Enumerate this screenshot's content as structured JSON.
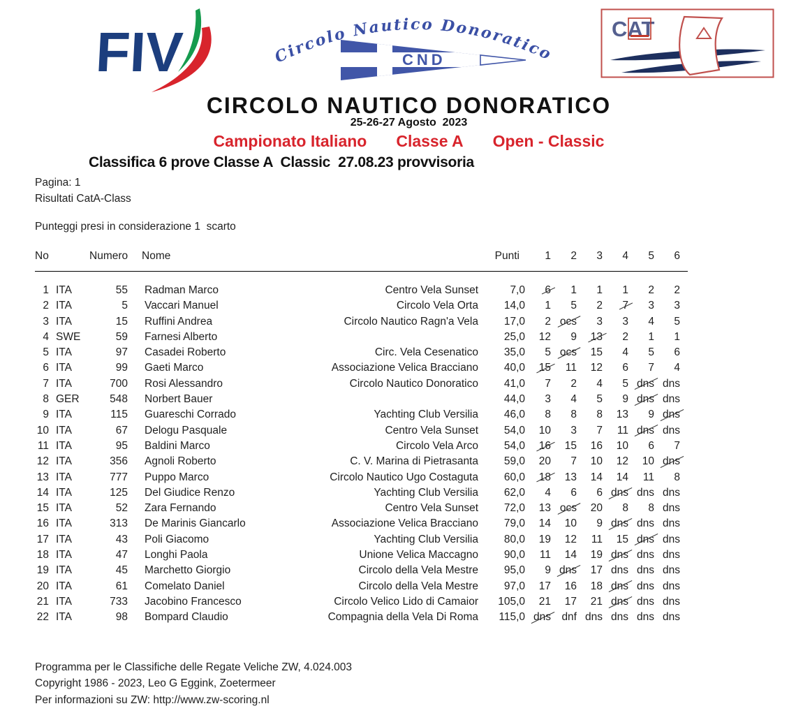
{
  "logos": {
    "fiv_text": "FIV",
    "club_arc_text": "Circolo Nautico Donoratico",
    "pennant_label": "CND",
    "cat_label": "CAT"
  },
  "header": {
    "title": "CIRCOLO NAUTICO DONORATICO",
    "dates": "25-26-27 Agosto  2023",
    "championship_parts": [
      "Campionato Italiano",
      "Classe A",
      "Open - Classic"
    ],
    "subtitle": "Classifica 6 prove Classe A  Classic  27.08.23 provvisoria"
  },
  "meta": {
    "page": "Pagina: 1",
    "results": "Risultati CatA-Class",
    "discard_note": "Punteggi presi in considerazione 1  scarto"
  },
  "table": {
    "headers": {
      "no": "No",
      "numero": "Numero",
      "nome": "Nome",
      "punti": "Punti",
      "races": [
        "1",
        "2",
        "3",
        "4",
        "5",
        "6"
      ]
    },
    "rows": [
      {
        "no": "1",
        "nat": "ITA",
        "sail": "55",
        "name": "Radman Marco",
        "club": "Centro Vela Sunset",
        "points": "7,0",
        "races": [
          {
            "v": "6",
            "struck": true
          },
          {
            "v": "1"
          },
          {
            "v": "1"
          },
          {
            "v": "1"
          },
          {
            "v": "2"
          },
          {
            "v": "2"
          }
        ]
      },
      {
        "no": "2",
        "nat": "ITA",
        "sail": "5",
        "name": "Vaccari Manuel",
        "club": "Circolo Vela Orta",
        "points": "14,0",
        "races": [
          {
            "v": "1"
          },
          {
            "v": "5"
          },
          {
            "v": "2"
          },
          {
            "v": "7",
            "struck": true
          },
          {
            "v": "3"
          },
          {
            "v": "3"
          }
        ]
      },
      {
        "no": "3",
        "nat": "ITA",
        "sail": "15",
        "name": "Ruffini Andrea",
        "club": "Circolo Nautico Ragn'a Vela",
        "points": "17,0",
        "races": [
          {
            "v": "2"
          },
          {
            "v": "ocs",
            "struck": true
          },
          {
            "v": "3"
          },
          {
            "v": "3"
          },
          {
            "v": "4"
          },
          {
            "v": "5"
          }
        ]
      },
      {
        "no": "4",
        "nat": "SWE",
        "sail": "59",
        "name": "Farnesi Alberto",
        "club": "",
        "points": "25,0",
        "races": [
          {
            "v": "12"
          },
          {
            "v": "9"
          },
          {
            "v": "13",
            "struck": true
          },
          {
            "v": "2"
          },
          {
            "v": "1"
          },
          {
            "v": "1"
          }
        ]
      },
      {
        "no": "5",
        "nat": "ITA",
        "sail": "97",
        "name": "Casadei Roberto",
        "club": "Circ. Vela Cesenatico",
        "points": "35,0",
        "races": [
          {
            "v": "5"
          },
          {
            "v": "ocs",
            "struck": true
          },
          {
            "v": "15"
          },
          {
            "v": "4"
          },
          {
            "v": "5"
          },
          {
            "v": "6"
          }
        ]
      },
      {
        "no": "6",
        "nat": "ITA",
        "sail": "99",
        "name": "Gaeti Marco",
        "club": "Associazione Velica Bracciano",
        "points": "40,0",
        "races": [
          {
            "v": "15",
            "struck": true
          },
          {
            "v": "11"
          },
          {
            "v": "12"
          },
          {
            "v": "6"
          },
          {
            "v": "7"
          },
          {
            "v": "4"
          }
        ]
      },
      {
        "no": "7",
        "nat": "ITA",
        "sail": "700",
        "name": "Rosi Alessandro",
        "club": "Circolo Nautico Donoratico",
        "points": "41,0",
        "races": [
          {
            "v": "7"
          },
          {
            "v": "2"
          },
          {
            "v": "4"
          },
          {
            "v": "5"
          },
          {
            "v": "dns",
            "struck": true
          },
          {
            "v": "dns"
          }
        ]
      },
      {
        "no": "8",
        "nat": "GER",
        "sail": "548",
        "name": "Norbert Bauer",
        "club": "",
        "points": "44,0",
        "races": [
          {
            "v": "3"
          },
          {
            "v": "4"
          },
          {
            "v": "5"
          },
          {
            "v": "9"
          },
          {
            "v": "dns",
            "struck": true
          },
          {
            "v": "dns"
          }
        ]
      },
      {
        "no": "9",
        "nat": "ITA",
        "sail": "115",
        "name": "Guareschi Corrado",
        "club": "Yachting Club Versilia",
        "points": "46,0",
        "races": [
          {
            "v": "8"
          },
          {
            "v": "8"
          },
          {
            "v": "8"
          },
          {
            "v": "13"
          },
          {
            "v": "9"
          },
          {
            "v": "dns",
            "struck": true
          }
        ]
      },
      {
        "no": "10",
        "nat": "ITA",
        "sail": "67",
        "name": "Delogu Pasquale",
        "club": "Centro Vela Sunset",
        "points": "54,0",
        "races": [
          {
            "v": "10"
          },
          {
            "v": "3"
          },
          {
            "v": "7"
          },
          {
            "v": "11"
          },
          {
            "v": "dns",
            "struck": true
          },
          {
            "v": "dns"
          }
        ]
      },
      {
        "no": "11",
        "nat": "ITA",
        "sail": "95",
        "name": "Baldini Marco",
        "club": "Circolo Vela Arco",
        "points": "54,0",
        "races": [
          {
            "v": "16",
            "struck": true
          },
          {
            "v": "15"
          },
          {
            "v": "16"
          },
          {
            "v": "10"
          },
          {
            "v": "6"
          },
          {
            "v": "7"
          }
        ]
      },
      {
        "no": "12",
        "nat": "ITA",
        "sail": "356",
        "name": "Agnoli Roberto",
        "club": "C. V. Marina di Pietrasanta",
        "points": "59,0",
        "races": [
          {
            "v": "20"
          },
          {
            "v": "7"
          },
          {
            "v": "10"
          },
          {
            "v": "12"
          },
          {
            "v": "10"
          },
          {
            "v": "dns",
            "struck": true
          }
        ]
      },
      {
        "no": "13",
        "nat": "ITA",
        "sail": "777",
        "name": "Puppo Marco",
        "club": "Circolo Nautico Ugo Costaguta",
        "points": "60,0",
        "races": [
          {
            "v": "18",
            "struck": true
          },
          {
            "v": "13"
          },
          {
            "v": "14"
          },
          {
            "v": "14"
          },
          {
            "v": "11"
          },
          {
            "v": "8"
          }
        ]
      },
      {
        "no": "14",
        "nat": "ITA",
        "sail": "125",
        "name": "Del Giudice Renzo",
        "club": "Yachting Club Versilia",
        "points": "62,0",
        "races": [
          {
            "v": "4"
          },
          {
            "v": "6"
          },
          {
            "v": "6"
          },
          {
            "v": "dns",
            "struck": true
          },
          {
            "v": "dns"
          },
          {
            "v": "dns"
          }
        ]
      },
      {
        "no": "15",
        "nat": "ITA",
        "sail": "52",
        "name": "Zara Fernando",
        "club": "Centro Vela Sunset",
        "points": "72,0",
        "races": [
          {
            "v": "13"
          },
          {
            "v": "ocs",
            "struck": true
          },
          {
            "v": "20"
          },
          {
            "v": "8"
          },
          {
            "v": "8"
          },
          {
            "v": "dns"
          }
        ]
      },
      {
        "no": "16",
        "nat": "ITA",
        "sail": "313",
        "name": "De Marinis Giancarlo",
        "club": "Associazione Velica Bracciano",
        "points": "79,0",
        "races": [
          {
            "v": "14"
          },
          {
            "v": "10"
          },
          {
            "v": "9"
          },
          {
            "v": "dns",
            "struck": true
          },
          {
            "v": "dns"
          },
          {
            "v": "dns"
          }
        ]
      },
      {
        "no": "17",
        "nat": "ITA",
        "sail": "43",
        "name": "Poli Giacomo",
        "club": "Yachting Club Versilia",
        "points": "80,0",
        "races": [
          {
            "v": "19"
          },
          {
            "v": "12"
          },
          {
            "v": "11"
          },
          {
            "v": "15"
          },
          {
            "v": "dns",
            "struck": true
          },
          {
            "v": "dns"
          }
        ]
      },
      {
        "no": "18",
        "nat": "ITA",
        "sail": "47",
        "name": "Longhi Paola",
        "club": "Unione Velica Maccagno",
        "points": "90,0",
        "races": [
          {
            "v": "11"
          },
          {
            "v": "14"
          },
          {
            "v": "19"
          },
          {
            "v": "dns",
            "struck": true
          },
          {
            "v": "dns"
          },
          {
            "v": "dns"
          }
        ]
      },
      {
        "no": "19",
        "nat": "ITA",
        "sail": "45",
        "name": "Marchetto Giorgio",
        "club": "Circolo della Vela Mestre",
        "points": "95,0",
        "races": [
          {
            "v": "9"
          },
          {
            "v": "dns",
            "struck": true
          },
          {
            "v": "17"
          },
          {
            "v": "dns"
          },
          {
            "v": "dns"
          },
          {
            "v": "dns"
          }
        ]
      },
      {
        "no": "20",
        "nat": "ITA",
        "sail": "61",
        "name": "Comelato Daniel",
        "club": "Circolo della Vela Mestre",
        "points": "97,0",
        "races": [
          {
            "v": "17"
          },
          {
            "v": "16"
          },
          {
            "v": "18"
          },
          {
            "v": "dns",
            "struck": true
          },
          {
            "v": "dns"
          },
          {
            "v": "dns"
          }
        ]
      },
      {
        "no": "21",
        "nat": "ITA",
        "sail": "733",
        "name": "Jacobino Francesco",
        "club": "Circolo Velico Lido di Camaior",
        "points": "105,0",
        "races": [
          {
            "v": "21"
          },
          {
            "v": "17"
          },
          {
            "v": "21"
          },
          {
            "v": "dns",
            "struck": true
          },
          {
            "v": "dns"
          },
          {
            "v": "dns"
          }
        ]
      },
      {
        "no": "22",
        "nat": "ITA",
        "sail": "98",
        "name": "Bompard Claudio",
        "club": "Compagnia della Vela Di Roma",
        "points": "115,0",
        "races": [
          {
            "v": "dns",
            "struck": true
          },
          {
            "v": "dnf"
          },
          {
            "v": "dns"
          },
          {
            "v": "dns"
          },
          {
            "v": "dns"
          },
          {
            "v": "dns"
          }
        ]
      }
    ]
  },
  "footer": {
    "lines": [
      "Programma per le Classifiche delle Regate Veliche ZW, 4.024.003",
      "Copyright 1986 - 2023, Leo G Eggink, Zoetermeer",
      "Per informazioni su ZW: http://www.zw-scoring.nl"
    ]
  },
  "colors": {
    "accent_red": "#d8242c",
    "fiv_blue": "#1c3e7e",
    "pennant_blue": "#4156a8",
    "script_blue": "#3a4fa5",
    "swoosh_navy": "#1d2f5e",
    "green": "#169b4e"
  }
}
